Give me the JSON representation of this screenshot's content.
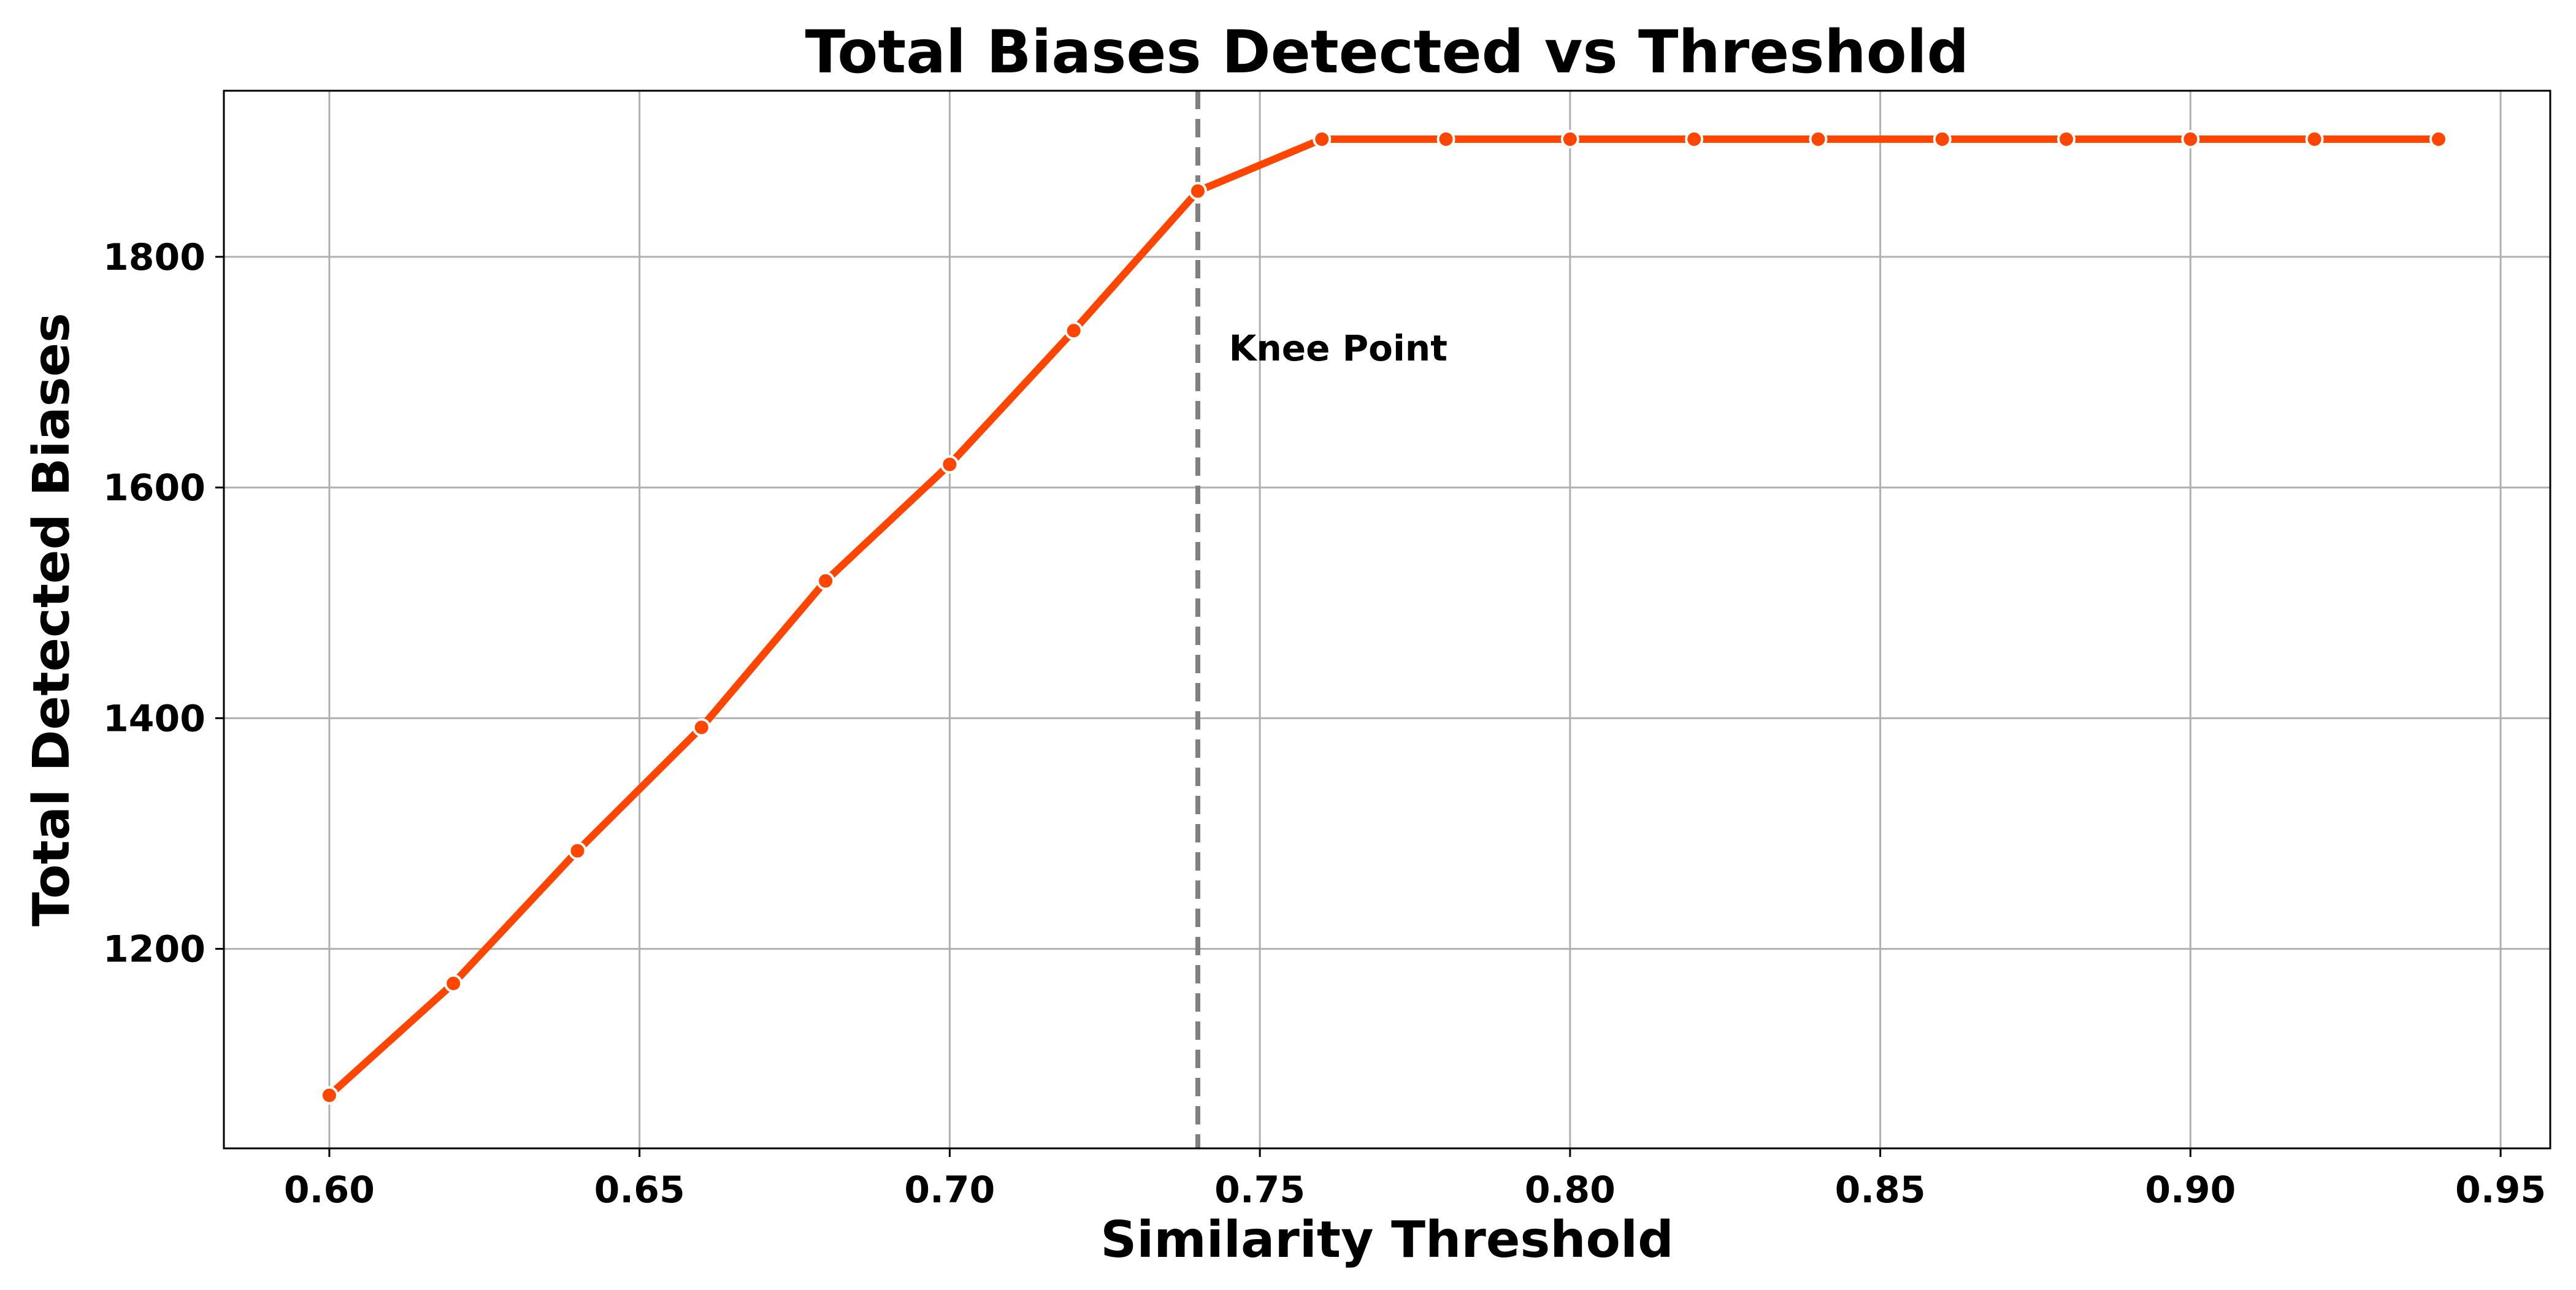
{
  "chart_data": {
    "type": "line",
    "title": "Total Biases Detected vs Threshold",
    "xlabel": "Similarity Threshold",
    "ylabel": "Total Detected Biases",
    "x": [
      0.6,
      0.62,
      0.64,
      0.66,
      0.68,
      0.7,
      0.72,
      0.74,
      0.76,
      0.78,
      0.8,
      0.82,
      0.84,
      0.86,
      0.88,
      0.9,
      0.92,
      0.94
    ],
    "series": [
      {
        "values": [
          1073,
          1170,
          1285,
          1392,
          1519,
          1620,
          1736,
          1857,
          1902,
          1902,
          1902,
          1902,
          1902,
          1902,
          1902,
          1902,
          1902,
          1902
        ],
        "color": "#ff4500",
        "marker": "circle"
      }
    ],
    "xlim": [
      0.583,
      0.958
    ],
    "ylim": [
      1027,
      1944
    ],
    "xticks": [
      0.6,
      0.65,
      0.7,
      0.75,
      0.8,
      0.85,
      0.9,
      0.95
    ],
    "xtick_labels": [
      "0.60",
      "0.65",
      "0.70",
      "0.75",
      "0.80",
      "0.85",
      "0.90",
      "0.95"
    ],
    "yticks": [
      1200,
      1400,
      1600,
      1800
    ],
    "ytick_labels": [
      "1200",
      "1400",
      "1600",
      "1800"
    ],
    "grid": true,
    "vline": {
      "x": 0.74,
      "style": "dashed",
      "color": "#808080"
    },
    "annotation": {
      "text": "Knee Point",
      "x": 0.745,
      "y": 1710
    }
  }
}
